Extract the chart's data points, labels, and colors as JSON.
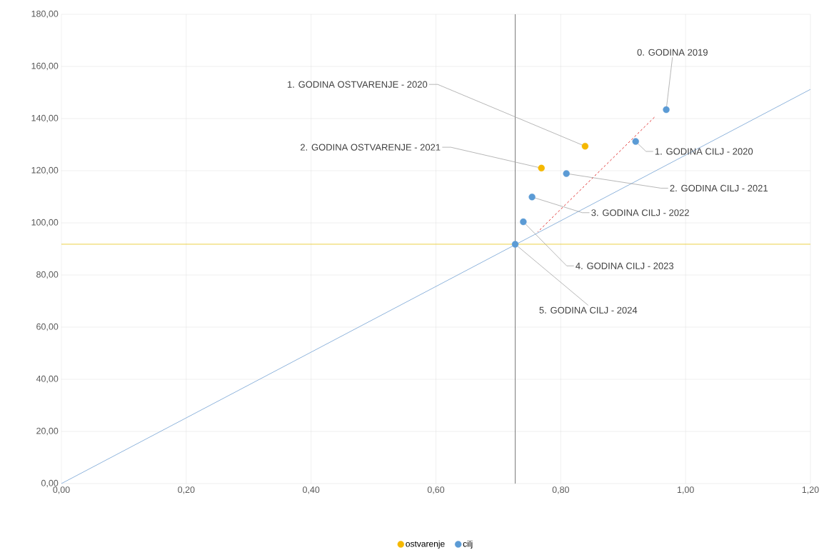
{
  "chart_data": {
    "type": "scatter",
    "xlim": [
      0,
      1.2
    ],
    "ylim": [
      0,
      180
    ],
    "xticks": [
      {
        "value": 0,
        "label": "0,00"
      },
      {
        "value": 0.2,
        "label": "0,20"
      },
      {
        "value": 0.4,
        "label": "0,40"
      },
      {
        "value": 0.6,
        "label": "0,60"
      },
      {
        "value": 0.8,
        "label": "0,80"
      },
      {
        "value": 1.0,
        "label": "1,00"
      },
      {
        "value": 1.2,
        "label": "1,20"
      }
    ],
    "yticks": [
      {
        "value": 0,
        "label": "0,00"
      },
      {
        "value": 20,
        "label": "20,00"
      },
      {
        "value": 40,
        "label": "40,00"
      },
      {
        "value": 60,
        "label": "60,00"
      },
      {
        "value": 80,
        "label": "80,00"
      },
      {
        "value": 100,
        "label": "100,00"
      },
      {
        "value": 120,
        "label": "120,00"
      },
      {
        "value": 140,
        "label": "140,00"
      },
      {
        "value": 160,
        "label": "160,00"
      },
      {
        "value": 180,
        "label": "180,00"
      }
    ],
    "grid": true,
    "legend": "bottom",
    "series": [
      {
        "name": "ostvarenje",
        "color": "#f5b800",
        "x": [
          0.839,
          0.769
        ],
        "values": [
          129.4,
          121.0
        ]
      },
      {
        "name": "cilj",
        "color": "#5b9bd5",
        "x": [
          0.969,
          0.92,
          0.809,
          0.754,
          0.74,
          0.727
        ],
        "values": [
          143.4,
          131.2,
          118.9,
          109.9,
          100.4,
          91.8
        ]
      },
      {
        "type": "line",
        "color": "#8fb4dc",
        "x": [
          0,
          1.2
        ],
        "values": [
          0,
          151.2
        ]
      },
      {
        "type": "line",
        "color": "#e03030",
        "line_style": "dashed",
        "x": [
          0.95,
          0.763
        ],
        "values": [
          140.5,
          96.5
        ]
      }
    ],
    "ref_lines": [
      {
        "axis": "x",
        "value": 0.727,
        "color": "#595959"
      },
      {
        "axis": "y",
        "value": 91.8,
        "color": "#e6c619"
      }
    ],
    "annotations": [
      {
        "text": "0. GODINA 2019",
        "x": 0.969,
        "y": 143.4
      },
      {
        "text": "1. GODINA OSTVARENJE - 2020",
        "x": 0.839,
        "y": 129.4
      },
      {
        "text": "1. GODINA CILJ - 2020",
        "x": 0.92,
        "y": 131.2
      },
      {
        "text": "2. GODINA OSTVARENJE - 2021",
        "x": 0.769,
        "y": 121.0
      },
      {
        "text": "2. GODINA CILJ - 2021",
        "x": 0.809,
        "y": 118.9
      },
      {
        "text": "3. GODINA CILJ - 2022",
        "x": 0.754,
        "y": 109.9
      },
      {
        "text": "4. GODINA CILJ - 2023",
        "x": 0.74,
        "y": 100.4
      },
      {
        "text": "5. GODINA CILJ - 2024",
        "x": 0.727,
        "y": 91.8
      }
    ]
  }
}
